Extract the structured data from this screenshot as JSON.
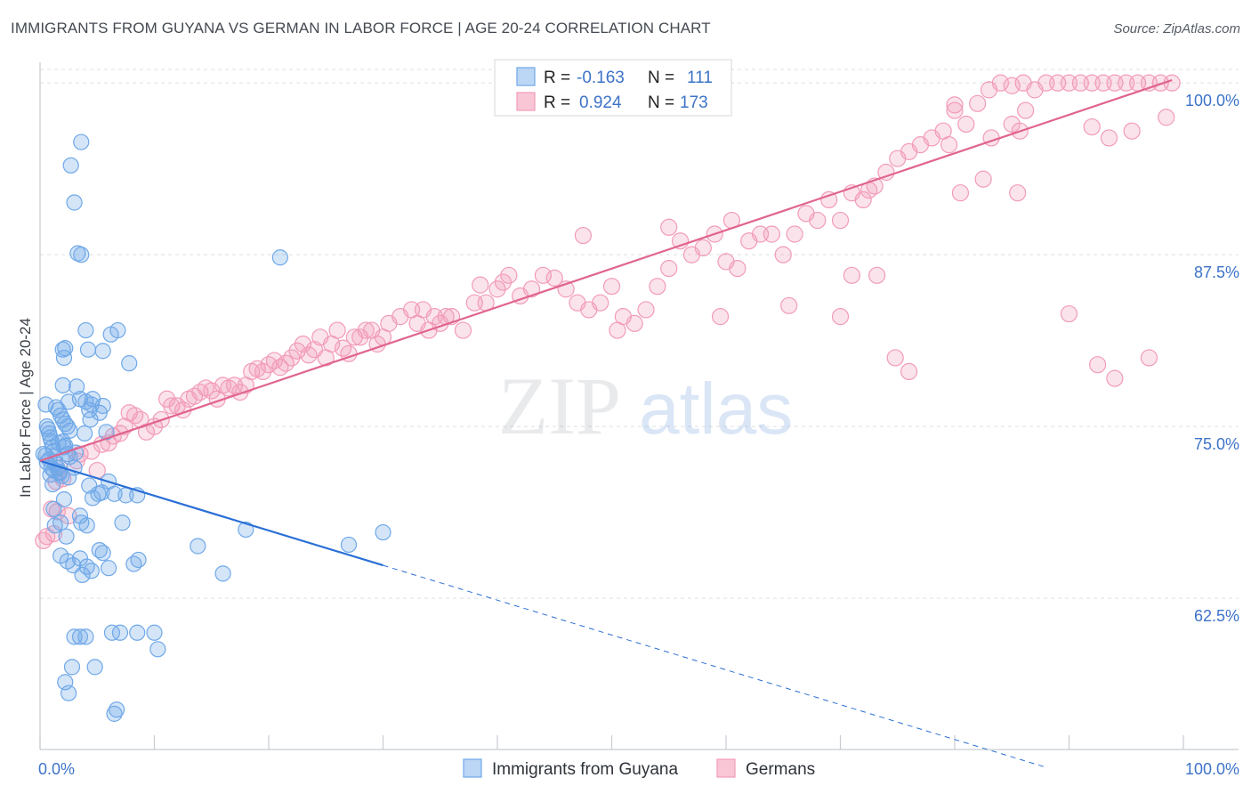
{
  "header": {
    "title": "IMMIGRANTS FROM GUYANA VS GERMAN IN LABOR FORCE | AGE 20-24 CORRELATION CHART",
    "source": "Source: ZipAtlas.com"
  },
  "watermark": {
    "zip": "ZIP",
    "atlas": "atlas"
  },
  "chart_data": {
    "type": "scatter",
    "title": "IMMIGRANTS FROM GUYANA VS GERMAN IN LABOR FORCE | AGE 20-24 CORRELATION CHART",
    "xlabel": "",
    "ylabel": "In Labor Force | Age 20-24",
    "xlim": [
      0,
      100
    ],
    "ylim": [
      51.5,
      101.5
    ],
    "x_tick_labels": [
      "0.0%",
      "100.0%"
    ],
    "y_ticks": [
      62.5,
      75.0,
      87.5,
      100.0
    ],
    "y_tick_labels": [
      "62.5%",
      "75.0%",
      "87.5%",
      "100.0%"
    ],
    "grid": true,
    "legend_position": "top-center",
    "colors": {
      "guyana": "#6fa8e8",
      "guyana_line": "#2a6fd6",
      "germans": "#f29bb8",
      "germans_line": "#e0648f",
      "tick_label": "#3d73c8"
    },
    "stats": [
      {
        "r_label": "R =",
        "r_value": "-0.163",
        "n_label": "N =",
        "n_value": "111"
      },
      {
        "r_label": "R =",
        "r_value": "0.924",
        "n_label": "N =",
        "n_value": "173"
      }
    ],
    "series": [
      {
        "name": "Immigrants from Guyana",
        "trend": {
          "x": [
            0,
            30
          ],
          "y": [
            72.5,
            64.9
          ],
          "dashed_to_x": 88,
          "dashed_to_y": 50.2
        },
        "points": [
          [
            0.5,
            76.6
          ],
          [
            0.6,
            75.0
          ],
          [
            0.7,
            74.8
          ],
          [
            0.8,
            74.5
          ],
          [
            0.9,
            74.2
          ],
          [
            1.0,
            73.9
          ],
          [
            1.1,
            73.5
          ],
          [
            1.2,
            73.2
          ],
          [
            0.5,
            72.9
          ],
          [
            0.8,
            72.6
          ],
          [
            1.3,
            72.3
          ],
          [
            1.5,
            72.0
          ],
          [
            1.7,
            71.7
          ],
          [
            1.9,
            71.4
          ],
          [
            1.4,
            76.4
          ],
          [
            1.6,
            76.2
          ],
          [
            1.8,
            75.8
          ],
          [
            2.0,
            75.5
          ],
          [
            2.2,
            75.2
          ],
          [
            2.4,
            75.0
          ],
          [
            2.6,
            74.7
          ],
          [
            2.0,
            73.9
          ],
          [
            2.2,
            73.6
          ],
          [
            2.4,
            73.0
          ],
          [
            1.0,
            72.0
          ],
          [
            1.2,
            71.8
          ],
          [
            1.7,
            71.6
          ],
          [
            2.5,
            71.3
          ],
          [
            3.0,
            72.0
          ],
          [
            2.0,
            80.6
          ],
          [
            2.2,
            80.7
          ],
          [
            2.1,
            80.0
          ],
          [
            2.0,
            78.0
          ],
          [
            3.2,
            77.9
          ],
          [
            3.5,
            77.0
          ],
          [
            2.5,
            76.8
          ],
          [
            4.0,
            76.8
          ],
          [
            4.5,
            76.6
          ],
          [
            4.3,
            76.2
          ],
          [
            4.6,
            77.0
          ],
          [
            5.2,
            76.0
          ],
          [
            5.5,
            76.5
          ],
          [
            4.0,
            82.0
          ],
          [
            4.2,
            80.6
          ],
          [
            5.5,
            80.5
          ],
          [
            6.2,
            81.7
          ],
          [
            6.8,
            82.0
          ],
          [
            7.8,
            79.6
          ],
          [
            3.6,
            87.5
          ],
          [
            3.3,
            87.6
          ],
          [
            2.7,
            94.0
          ],
          [
            3.0,
            91.3
          ],
          [
            3.6,
            95.7
          ],
          [
            2.1,
            69.7
          ],
          [
            1.2,
            69.0
          ],
          [
            1.8,
            68.0
          ],
          [
            1.3,
            67.8
          ],
          [
            2.3,
            67.0
          ],
          [
            3.5,
            68.5
          ],
          [
            3.6,
            68.0
          ],
          [
            4.1,
            67.8
          ],
          [
            4.6,
            69.8
          ],
          [
            5.1,
            70.1
          ],
          [
            5.4,
            70.2
          ],
          [
            6.0,
            71.0
          ],
          [
            6.5,
            70.1
          ],
          [
            4.3,
            70.7
          ],
          [
            7.2,
            68.0
          ],
          [
            7.5,
            70.0
          ],
          [
            8.5,
            70.0
          ],
          [
            1.8,
            65.6
          ],
          [
            2.4,
            65.2
          ],
          [
            2.9,
            64.9
          ],
          [
            3.5,
            65.4
          ],
          [
            3.7,
            64.2
          ],
          [
            4.1,
            64.8
          ],
          [
            4.5,
            64.5
          ],
          [
            5.2,
            66.0
          ],
          [
            5.5,
            65.8
          ],
          [
            6.0,
            64.7
          ],
          [
            8.2,
            65.0
          ],
          [
            8.6,
            65.3
          ],
          [
            10.0,
            60.0
          ],
          [
            10.3,
            58.8
          ],
          [
            8.5,
            60.0
          ],
          [
            6.3,
            60.0
          ],
          [
            7.0,
            60.0
          ],
          [
            3.0,
            59.7
          ],
          [
            4.0,
            59.7
          ],
          [
            3.5,
            59.7
          ],
          [
            2.8,
            57.5
          ],
          [
            4.8,
            57.5
          ],
          [
            2.2,
            56.4
          ],
          [
            2.5,
            55.6
          ],
          [
            6.5,
            54.1
          ],
          [
            6.7,
            54.4
          ],
          [
            13.8,
            66.3
          ],
          [
            16.0,
            64.3
          ],
          [
            18.0,
            67.5
          ],
          [
            27.0,
            66.4
          ],
          [
            30.0,
            67.3
          ],
          [
            21.0,
            87.3
          ],
          [
            0.3,
            73.0
          ],
          [
            0.6,
            72.4
          ],
          [
            0.9,
            71.5
          ],
          [
            1.1,
            70.8
          ],
          [
            1.6,
            73.8
          ],
          [
            2.1,
            73.5
          ],
          [
            2.6,
            72.8
          ],
          [
            3.1,
            73.1
          ],
          [
            3.9,
            74.5
          ],
          [
            4.4,
            75.5
          ],
          [
            5.8,
            74.6
          ]
        ]
      },
      {
        "name": "Germans",
        "trend": {
          "x": [
            0,
            99
          ],
          "y": [
            72.5,
            100.2
          ]
        },
        "points": [
          [
            0.3,
            66.7
          ],
          [
            0.6,
            67.0
          ],
          [
            1.2,
            67.2
          ],
          [
            1.0,
            69.0
          ],
          [
            1.5,
            68.8
          ],
          [
            2.5,
            68.5
          ],
          [
            1.4,
            71.0
          ],
          [
            2.0,
            71.2
          ],
          [
            1.7,
            72.0
          ],
          [
            3.2,
            72.5
          ],
          [
            3.5,
            73.0
          ],
          [
            4.5,
            73.2
          ],
          [
            5.0,
            71.8
          ],
          [
            5.4,
            73.7
          ],
          [
            6.0,
            73.8
          ],
          [
            6.4,
            74.3
          ],
          [
            7.0,
            74.5
          ],
          [
            7.4,
            75.0
          ],
          [
            7.8,
            76.0
          ],
          [
            8.3,
            75.8
          ],
          [
            8.8,
            75.5
          ],
          [
            9.3,
            74.6
          ],
          [
            10.0,
            75.0
          ],
          [
            10.6,
            75.5
          ],
          [
            11.1,
            77.0
          ],
          [
            11.5,
            76.5
          ],
          [
            12.0,
            76.5
          ],
          [
            12.5,
            76.2
          ],
          [
            13.0,
            77.0
          ],
          [
            13.5,
            77.2
          ],
          [
            14.0,
            77.5
          ],
          [
            14.5,
            77.8
          ],
          [
            15.0,
            77.6
          ],
          [
            15.5,
            77.0
          ],
          [
            16.0,
            78.0
          ],
          [
            16.5,
            77.8
          ],
          [
            17.0,
            78.0
          ],
          [
            17.5,
            77.5
          ],
          [
            18.0,
            78.0
          ],
          [
            18.5,
            79.0
          ],
          [
            19.0,
            79.2
          ],
          [
            19.5,
            79.0
          ],
          [
            20.0,
            79.5
          ],
          [
            20.5,
            79.8
          ],
          [
            21.0,
            79.3
          ],
          [
            21.5,
            79.6
          ],
          [
            22.0,
            80.0
          ],
          [
            22.5,
            80.5
          ],
          [
            23.0,
            81.0
          ],
          [
            23.5,
            80.2
          ],
          [
            24.0,
            80.6
          ],
          [
            24.5,
            81.5
          ],
          [
            25.0,
            80.0
          ],
          [
            25.5,
            81.0
          ],
          [
            26.0,
            82.0
          ],
          [
            26.5,
            80.7
          ],
          [
            27.0,
            80.3
          ],
          [
            27.5,
            81.5
          ],
          [
            28.0,
            81.5
          ],
          [
            28.5,
            82.0
          ],
          [
            29.0,
            82.0
          ],
          [
            29.5,
            81.0
          ],
          [
            30.0,
            81.5
          ],
          [
            30.5,
            82.5
          ],
          [
            31.5,
            83.0
          ],
          [
            32.5,
            83.5
          ],
          [
            33.0,
            82.5
          ],
          [
            33.5,
            83.5
          ],
          [
            34.0,
            82.0
          ],
          [
            34.5,
            83.0
          ],
          [
            35.0,
            82.5
          ],
          [
            35.5,
            83.0
          ],
          [
            36.0,
            83.0
          ],
          [
            37.0,
            82.0
          ],
          [
            38.0,
            84.0
          ],
          [
            38.5,
            85.3
          ],
          [
            39.0,
            84.0
          ],
          [
            40.0,
            85.0
          ],
          [
            40.5,
            85.5
          ],
          [
            41.0,
            86.0
          ],
          [
            42.0,
            84.5
          ],
          [
            43.0,
            85.0
          ],
          [
            44.0,
            86.0
          ],
          [
            45.0,
            85.8
          ],
          [
            46.0,
            85.0
          ],
          [
            47.0,
            84.0
          ],
          [
            48.0,
            83.5
          ],
          [
            49.0,
            84.0
          ],
          [
            50.0,
            85.2
          ],
          [
            51.0,
            83.0
          ],
          [
            52.0,
            82.5
          ],
          [
            53.0,
            83.5
          ],
          [
            54.0,
            85.2
          ],
          [
            55.0,
            86.5
          ],
          [
            56.0,
            88.5
          ],
          [
            57.0,
            87.5
          ],
          [
            58.0,
            88.0
          ],
          [
            59.0,
            89.0
          ],
          [
            60.0,
            87.0
          ],
          [
            61.0,
            86.5
          ],
          [
            62.0,
            88.5
          ],
          [
            63.0,
            89.0
          ],
          [
            64.0,
            89.0
          ],
          [
            65.0,
            87.5
          ],
          [
            66.0,
            89.0
          ],
          [
            67.0,
            90.5
          ],
          [
            68.0,
            90.0
          ],
          [
            69.0,
            91.5
          ],
          [
            70.0,
            90.0
          ],
          [
            71.0,
            92.0
          ],
          [
            72.0,
            91.5
          ],
          [
            73.0,
            92.5
          ],
          [
            74.0,
            93.5
          ],
          [
            75.0,
            94.5
          ],
          [
            76.0,
            95.0
          ],
          [
            77.0,
            95.5
          ],
          [
            78.0,
            96.0
          ],
          [
            79.0,
            96.5
          ],
          [
            80.0,
            98.0
          ],
          [
            81.0,
            97.0
          ],
          [
            82.0,
            98.5
          ],
          [
            83.0,
            99.5
          ],
          [
            84.0,
            100.0
          ],
          [
            85.0,
            99.8
          ],
          [
            86.0,
            100.0
          ],
          [
            87.0,
            99.5
          ],
          [
            88.0,
            100.0
          ],
          [
            89.0,
            100.0
          ],
          [
            90.0,
            100.0
          ],
          [
            91.0,
            100.0
          ],
          [
            92.0,
            100.0
          ],
          [
            93.0,
            100.0
          ],
          [
            94.0,
            100.0
          ],
          [
            95.0,
            100.0
          ],
          [
            96.0,
            100.0
          ],
          [
            97.0,
            100.0
          ],
          [
            98.0,
            100.0
          ],
          [
            99.0,
            100.0
          ],
          [
            47.5,
            88.9
          ],
          [
            50.5,
            82.0
          ],
          [
            55.0,
            89.5
          ],
          [
            59.5,
            83.0
          ],
          [
            60.5,
            90.0
          ],
          [
            65.5,
            83.8
          ],
          [
            71.0,
            86.0
          ],
          [
            70.0,
            83.0
          ],
          [
            72.5,
            92.2
          ],
          [
            73.2,
            86.0
          ],
          [
            74.8,
            80.0
          ],
          [
            76.0,
            79.0
          ],
          [
            79.5,
            95.5
          ],
          [
            80.5,
            92.0
          ],
          [
            82.5,
            93.0
          ],
          [
            83.2,
            96.0
          ],
          [
            85.5,
            92.0
          ],
          [
            90.0,
            83.2
          ],
          [
            92.5,
            79.5
          ],
          [
            94.0,
            78.5
          ],
          [
            97.0,
            80.0
          ],
          [
            98.5,
            97.5
          ],
          [
            85.0,
            97.0
          ],
          [
            85.7,
            96.5
          ],
          [
            92.0,
            96.8
          ],
          [
            93.5,
            96.0
          ],
          [
            95.5,
            96.5
          ],
          [
            86.2,
            98.0
          ],
          [
            80.0,
            98.4
          ]
        ]
      }
    ]
  }
}
